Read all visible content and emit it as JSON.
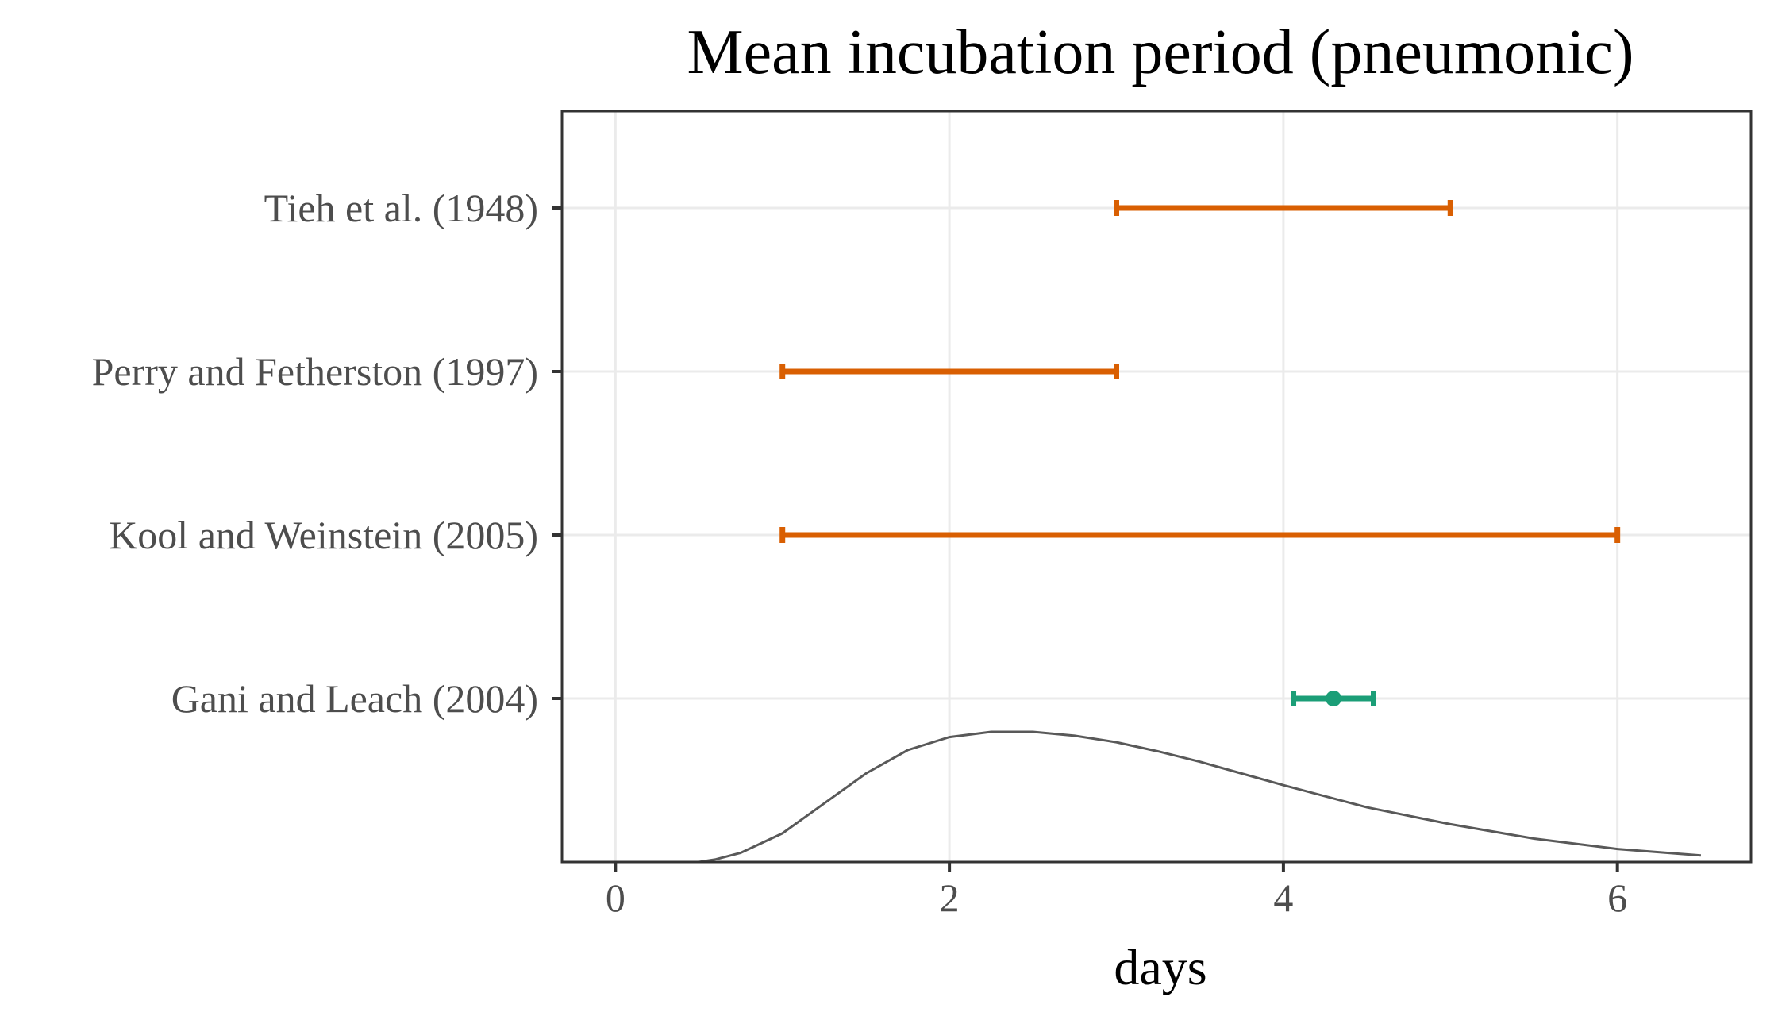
{
  "chart_data": {
    "type": "interval",
    "title": "Mean incubation period (pneumonic)",
    "xlabel": "days",
    "ylabel": "",
    "xlim": [
      -0.32,
      6.8
    ],
    "x_ticks": [
      0,
      2,
      4,
      6
    ],
    "grid": true,
    "legend": "none",
    "categories": [
      "Tieh et al. (1948)",
      "Perry and Fetherston (1997)",
      "Kool and Weinstein (2005)",
      "Gani and Leach (2004)"
    ],
    "intervals": [
      {
        "label": "Tieh et al. (1948)",
        "low": 3,
        "high": 5,
        "color": "#d95f02"
      },
      {
        "label": "Perry and Fetherston (1997)",
        "low": 1,
        "high": 3,
        "color": "#d95f02"
      },
      {
        "label": "Kool and Weinstein (2005)",
        "low": 1,
        "high": 6,
        "color": "#d95f02"
      },
      {
        "label": "Gani and Leach (2004)",
        "low": 4.06,
        "high": 4.54,
        "point": 4.3,
        "color": "#1b9e77"
      }
    ],
    "density": {
      "color": "#595959",
      "x": [
        0.5,
        0.6,
        0.75,
        1.0,
        1.25,
        1.5,
        1.75,
        2.0,
        2.25,
        2.5,
        2.75,
        3.0,
        3.25,
        3.5,
        3.75,
        4.0,
        4.5,
        5.0,
        5.5,
        6.0,
        6.5
      ],
      "y": [
        0.0,
        0.02,
        0.07,
        0.22,
        0.45,
        0.68,
        0.86,
        0.96,
        1.0,
        1.0,
        0.97,
        0.92,
        0.85,
        0.77,
        0.68,
        0.59,
        0.42,
        0.29,
        0.18,
        0.1,
        0.05
      ]
    }
  }
}
